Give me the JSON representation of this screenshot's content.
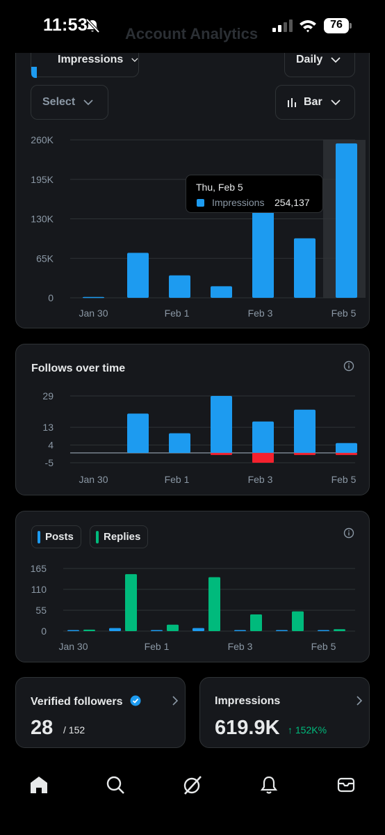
{
  "status": {
    "time": "11:53",
    "battery": "76"
  },
  "header": {
    "title": "Account Analytics"
  },
  "impressions_card": {
    "metric_select": "Impressions",
    "period_select": "Daily",
    "compare_select": "Select",
    "chart_type_select": "Bar",
    "tooltip": {
      "date": "Thu, Feb 5",
      "label": "Impressions",
      "value": "254,137"
    }
  },
  "follows_card": {
    "title": "Follows over time"
  },
  "posts_card": {
    "legend": {
      "posts": "Posts",
      "replies": "Replies"
    }
  },
  "verified": {
    "label": "Verified followers",
    "value": "28",
    "total": "/ 152"
  },
  "impressions_stat": {
    "label": "Impressions",
    "value": "619.9K",
    "delta": "↑ 152K%"
  },
  "colors": {
    "blue": "#1d9bf0",
    "green": "#00ba7c",
    "red": "#f4212e",
    "card": "#16181c",
    "border": "#2f3336",
    "muted": "#8b98a5"
  },
  "tabs": [
    "home-icon",
    "search-icon",
    "grok-icon",
    "notifications-icon",
    "messages-icon"
  ],
  "chart_data": [
    {
      "type": "bar",
      "categories": [
        "Jan 30",
        "Jan 31",
        "Feb 1",
        "Feb 2",
        "Feb 3",
        "Feb 4",
        "Feb 5"
      ],
      "x_tick_labels": [
        "Jan 30",
        "Feb 1",
        "Feb 3",
        "Feb 5"
      ],
      "series": [
        {
          "name": "Impressions",
          "values": [
            1500,
            74000,
            37000,
            19000,
            150000,
            98000,
            254137
          ]
        }
      ],
      "ylim": [
        0,
        260000
      ],
      "y_ticks": [
        0,
        65000,
        130000,
        195000,
        260000
      ],
      "y_tick_labels": [
        "0",
        "65K",
        "130K",
        "195K",
        "260K"
      ],
      "highlight_index": 6
    },
    {
      "type": "bar",
      "title": "Follows over time",
      "categories": [
        "Jan 30",
        "Jan 31",
        "Feb 1",
        "Feb 2",
        "Feb 3",
        "Feb 4",
        "Feb 5"
      ],
      "x_tick_labels": [
        "Jan 30",
        "Feb 1",
        "Feb 3",
        "Feb 5"
      ],
      "series": [
        {
          "values": [
            0,
            20,
            10,
            29,
            16,
            22,
            5
          ]
        },
        {
          "values": [
            0,
            0,
            0,
            -1,
            -5,
            -1,
            -1
          ]
        }
      ],
      "ylim": [
        -5,
        29
      ],
      "y_ticks": [
        -5,
        4,
        13,
        29
      ],
      "y_tick_labels": [
        "-5",
        "4",
        "13",
        "29"
      ]
    },
    {
      "type": "bar",
      "categories": [
        "Jan 30",
        "Jan 31",
        "Feb 1",
        "Feb 2",
        "Feb 3",
        "Feb 4",
        "Feb 5"
      ],
      "x_tick_labels": [
        "Jan 30",
        "Feb 1",
        "Feb 3",
        "Feb 5"
      ],
      "series": [
        {
          "name": "Posts",
          "values": [
            1,
            8,
            1,
            8,
            1,
            1,
            0
          ]
        },
        {
          "name": "Replies",
          "values": [
            4,
            150,
            17,
            142,
            44,
            52,
            5
          ]
        }
      ],
      "ylim": [
        0,
        165
      ],
      "y_ticks": [
        0,
        55,
        110,
        165
      ],
      "y_tick_labels": [
        "0",
        "55",
        "110",
        "165"
      ],
      "legend": "top-left"
    }
  ]
}
